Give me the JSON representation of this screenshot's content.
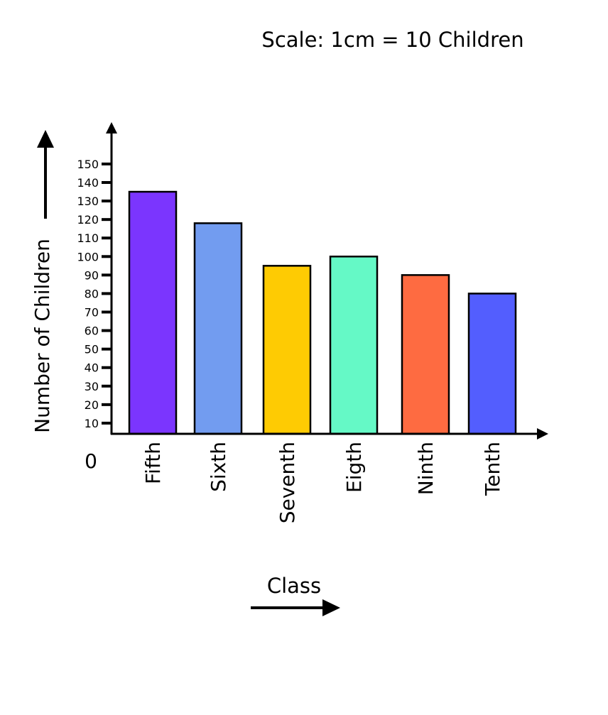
{
  "chart_data": {
    "type": "bar",
    "title": "Scale: 1cm = 10 Children",
    "xlabel": "Class",
    "ylabel": "Number of Children",
    "origin_label": "0",
    "categories": [
      "Fifth",
      "Sixth",
      "Seventh",
      "Eigth",
      "Ninth",
      "Tenth"
    ],
    "values": [
      135,
      118,
      95,
      100,
      90,
      80
    ],
    "colors": [
      "#7b35fe",
      "#729cf0",
      "#fecb03",
      "#65f9c6",
      "#fe6b41",
      "#535efe"
    ],
    "yticks": [
      10,
      20,
      30,
      40,
      50,
      60,
      70,
      80,
      90,
      100,
      110,
      120,
      130,
      140,
      150
    ],
    "ylim": [
      0,
      150
    ],
    "grid": false,
    "legend": "none"
  }
}
